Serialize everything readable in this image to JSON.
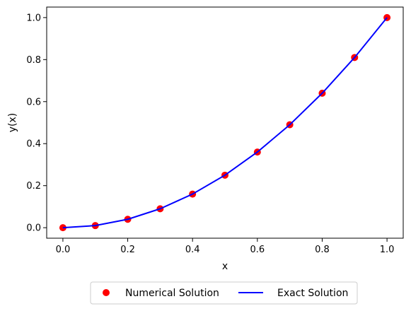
{
  "chart_data": {
    "type": "line",
    "xlabel": "x",
    "ylabel": "y(x)",
    "xlim": [
      -0.05,
      1.05
    ],
    "ylim": [
      -0.05,
      1.05
    ],
    "xticks": [
      0.0,
      0.2,
      0.4,
      0.6,
      0.8,
      1.0
    ],
    "yticks": [
      0.0,
      0.2,
      0.4,
      0.6,
      0.8,
      1.0
    ],
    "xtick_labels": [
      "0.0",
      "0.2",
      "0.4",
      "0.6",
      "0.8",
      "1.0"
    ],
    "ytick_labels": [
      "0.0",
      "0.2",
      "0.4",
      "0.6",
      "0.8",
      "1.0"
    ],
    "grid": false,
    "legend_placement": "bottom-center-outside",
    "series": [
      {
        "name": "Numerical Solution",
        "kind": "scatter",
        "color": "#ff0000",
        "x": [
          0.0,
          0.1,
          0.2,
          0.3,
          0.4,
          0.5,
          0.6,
          0.7,
          0.8,
          0.9,
          1.0
        ],
        "y": [
          0.0,
          0.01,
          0.04,
          0.09,
          0.16,
          0.25,
          0.36,
          0.49,
          0.64,
          0.81,
          1.0
        ]
      },
      {
        "name": "Exact Solution",
        "kind": "line",
        "color": "#0000ff",
        "x": [
          0.0,
          0.1,
          0.2,
          0.3,
          0.4,
          0.5,
          0.6,
          0.7,
          0.8,
          0.9,
          1.0
        ],
        "y": [
          0.0,
          0.01,
          0.04,
          0.09,
          0.16,
          0.25,
          0.36,
          0.49,
          0.64,
          0.81,
          1.0
        ]
      }
    ]
  }
}
